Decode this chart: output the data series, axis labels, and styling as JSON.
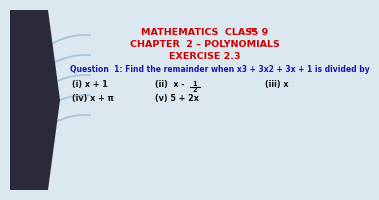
{
  "title_line1": "MATHEMATICS  CLASS 9",
  "title_th": "TH",
  "title_line2": "CHAPTER  2 – POLYNOMIALS",
  "title_line3": "EXERCISE 2.3",
  "question": "Question  1: Find the remainder when x3 + 3x2 + 3x + 1 is divided by",
  "item_i": "(i) x + 1",
  "item_ii_pre": "(ii)  x - ",
  "item_iii": "(iii) x",
  "item_iv": "(iv) x + π",
  "item_v": "(v) 5 + 2x",
  "title_color": "#cc0000",
  "question_color": "#1a1aaa",
  "item_color": "#111111",
  "bg_color": "#dce8f0",
  "strip_color": "#2a2a3a"
}
